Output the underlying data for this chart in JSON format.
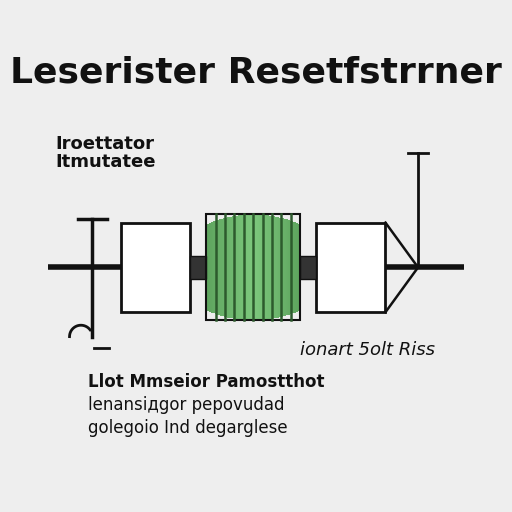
{
  "title": "Leserister Resetfstrrner",
  "bg_color": "#eeeeee",
  "body_color_light": "#7dc87d",
  "body_color_dark": "#3a7a3a",
  "body_stripe_color": "#2d5a2d",
  "cap_color": "#ffffff",
  "cap_border": "#111111",
  "wire_color": "#111111",
  "text_color": "#111111",
  "left_label_line1": "Iroettator",
  "left_label_line2": "Itmutatee",
  "bottom_right_label": "ionart 5olt Riss",
  "bottom_line1": "Llot Mmseior Pamostthot",
  "bottom_line2": "lenansiдgor pepovudad",
  "bottom_line3": "golegoio Ind degarglese",
  "title_fontsize": 26,
  "label_fontsize": 13,
  "small_fontsize": 12,
  "figsize": [
    5.12,
    5.12
  ],
  "dpi": 100
}
